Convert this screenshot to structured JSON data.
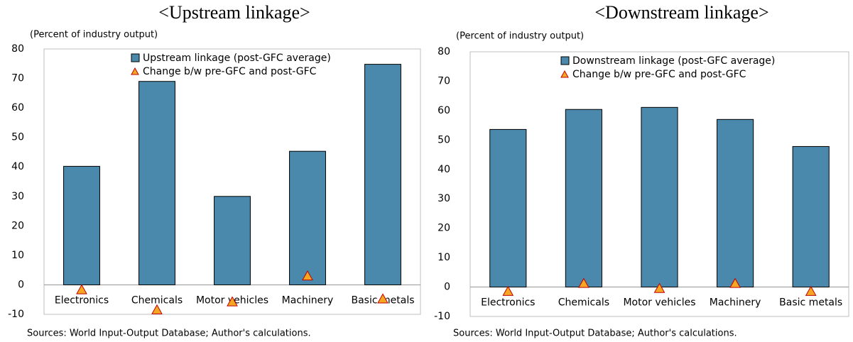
{
  "chart_data": [
    {
      "type": "bar",
      "title": "<Upstream linkage>",
      "ylabel": "(Percent of industry output)",
      "note": "Sources: World Input-Output Database; Author's calculations.",
      "categories": [
        "Electronics",
        "Chemicals",
        "Motor vehicles",
        "Machinery",
        "Basic metals"
      ],
      "series": [
        {
          "name": "Upstream linkage (post-GFC average)",
          "type": "bar",
          "color": "#4a89ab",
          "values": [
            40.2,
            69,
            30,
            45.3,
            74.8
          ]
        },
        {
          "name": "Change b/w pre-GFC and post-GFC",
          "type": "scatter",
          "color": "#f5a623",
          "values": [
            -1.7,
            -8.5,
            -5.8,
            3,
            -4.8
          ]
        }
      ],
      "ylim": [
        -10,
        80
      ],
      "yticks": [
        -10,
        0,
        10,
        20,
        30,
        40,
        50,
        60,
        70,
        80
      ],
      "grid": false
    },
    {
      "type": "bar",
      "title": "<Downstream linkage>",
      "ylabel": "(Percent of industry output)",
      "note": "Sources: World Input-Output Database; Author's calculations.",
      "categories": [
        "Electronics",
        "Chemicals",
        "Motor vehicles",
        "Machinery",
        "Basic metals"
      ],
      "series": [
        {
          "name": "Downstream linkage (post-GFC average)",
          "type": "bar",
          "color": "#4a89ab",
          "values": [
            53.6,
            60.4,
            61.1,
            57,
            47.8
          ]
        },
        {
          "name": "Change b/w pre-GFC and post-GFC",
          "type": "scatter",
          "color": "#f5a623",
          "values": [
            -1.5,
            1.2,
            -0.5,
            1.2,
            -1.5
          ]
        }
      ],
      "ylim": [
        -10,
        80
      ],
      "yticks": [
        -10,
        0,
        10,
        20,
        30,
        40,
        50,
        60,
        70,
        80
      ],
      "grid": false
    }
  ]
}
